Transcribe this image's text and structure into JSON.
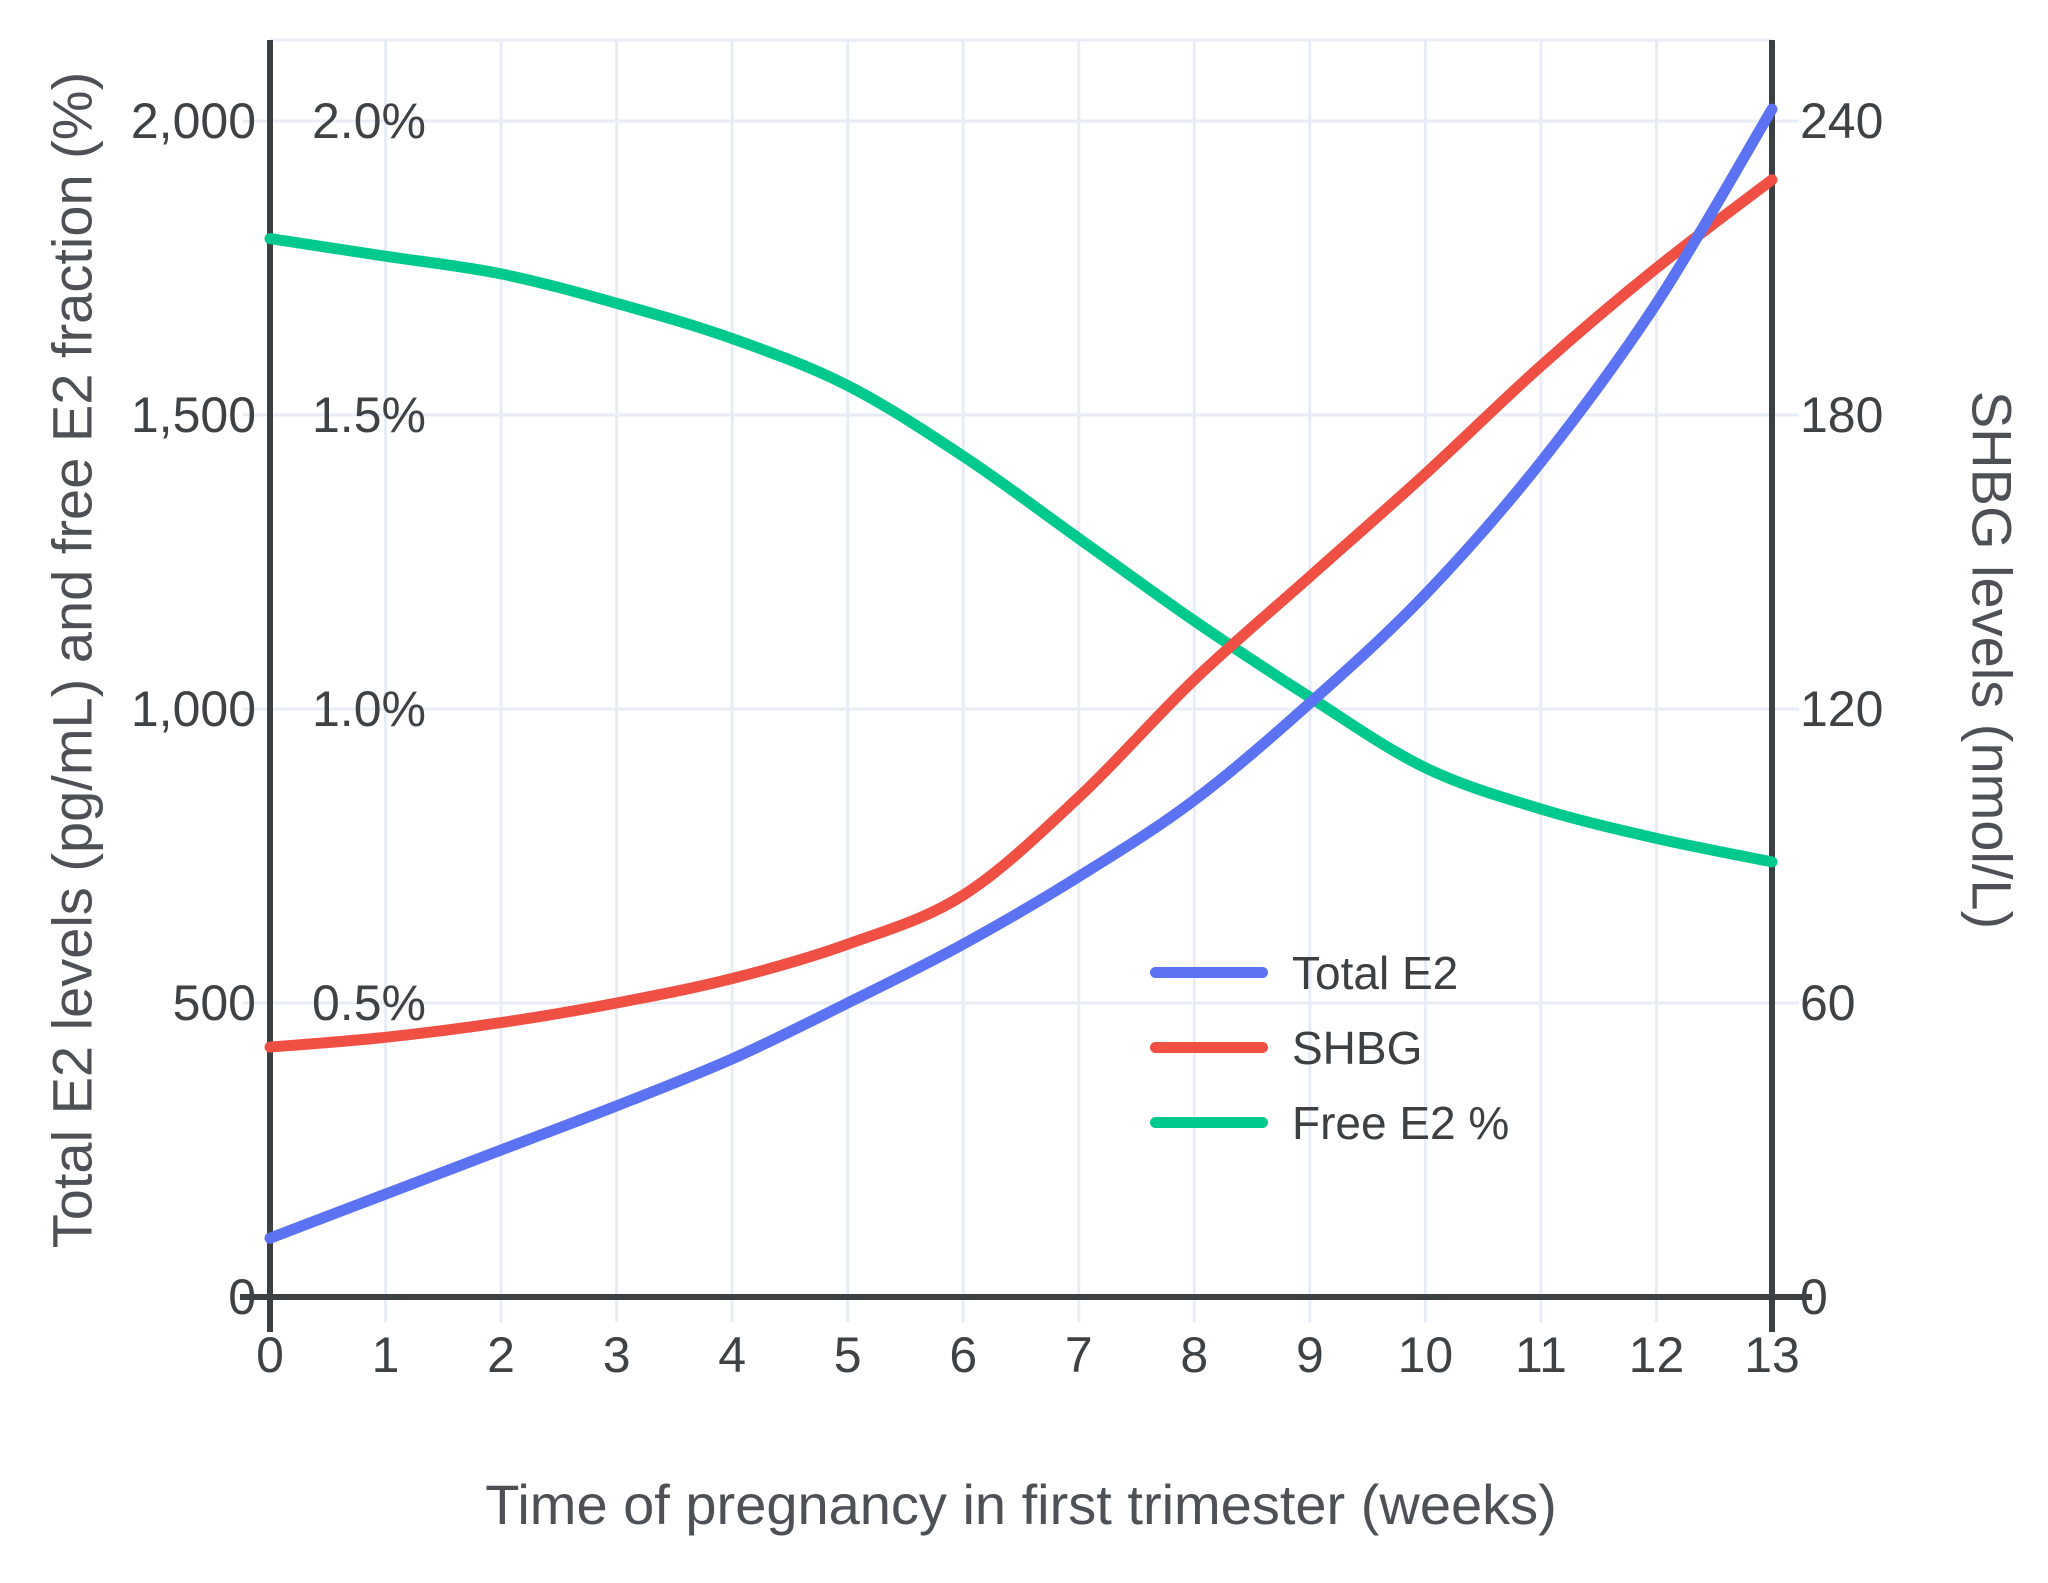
{
  "chart_data": {
    "type": "line",
    "xlabel": "Time of pregnancy in first trimester (weeks)",
    "ylabel_left": "Total E2 levels (pg/mL) and free E2 fraction (%)",
    "ylabel_right": "SHBG levels (nmol/L)",
    "x": [
      0,
      1,
      2,
      3,
      4,
      5,
      6,
      7,
      8,
      9,
      10,
      11,
      12,
      13
    ],
    "x_ticks": [
      "0",
      "1",
      "2",
      "3",
      "4",
      "5",
      "6",
      "7",
      "8",
      "9",
      "10",
      "11",
      "12",
      "13"
    ],
    "xlim": [
      0,
      13
    ],
    "grid": true,
    "legend_position": "inside-right-middle",
    "left_axis": {
      "values": [
        0,
        500,
        1000,
        1500,
        2000
      ],
      "ticks": [
        "0",
        "500",
        "1,000",
        "1,500",
        "2,000"
      ],
      "percent_labels": [
        {
          "label": "0.5%",
          "value": 500
        },
        {
          "label": "1.0%",
          "value": 1000
        },
        {
          "label": "1.5%",
          "value": 1500
        },
        {
          "label": "2.0%",
          "value": 2000
        }
      ],
      "ylim": [
        0,
        2100
      ]
    },
    "right_axis": {
      "values": [
        0,
        60,
        120,
        180,
        240
      ],
      "ticks": [
        "0",
        "60",
        "120",
        "180",
        "240"
      ],
      "ylim": [
        0,
        252
      ]
    },
    "series": [
      {
        "name": "Free E2 %",
        "axis": "percent",
        "color": "#00c98d",
        "unit": "%",
        "values": [
          1.8,
          1.77,
          1.74,
          1.69,
          1.63,
          1.55,
          1.43,
          1.29,
          1.15,
          1.02,
          0.9,
          0.83,
          0.78,
          0.74
        ]
      },
      {
        "name": "SHBG",
        "axis": "right",
        "color": "#f04f44",
        "unit": "nmol/L",
        "values": [
          51,
          53,
          56,
          60,
          65,
          72,
          82,
          102,
          126,
          147,
          168,
          190,
          210,
          228
        ]
      },
      {
        "name": "Total E2",
        "axis": "left",
        "color": "#5b72f2",
        "unit": "pg/mL",
        "values": [
          100,
          175,
          250,
          325,
          405,
          500,
          600,
          715,
          845,
          1010,
          1195,
          1420,
          1690,
          2020
        ]
      }
    ],
    "colors": {
      "grid": "#e8ecf6",
      "axis": "#3c4043",
      "tick_text": "#3f4245",
      "title_text": "#4d5156"
    }
  },
  "legend": {
    "order": [
      "Total E2",
      "SHBG",
      "Free E2 %"
    ]
  }
}
